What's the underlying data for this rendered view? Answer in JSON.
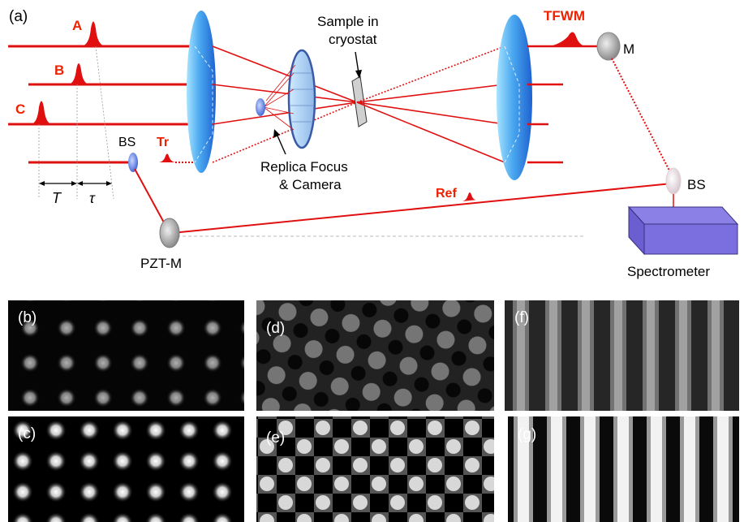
{
  "labels": {
    "panel_a": "(a)",
    "pulse_a": "A",
    "pulse_b": "B",
    "pulse_c": "C",
    "tr": "Tr",
    "bs_left": "BS",
    "t_big": "T",
    "tau": "τ",
    "pzt_m": "PZT-M",
    "sample_line1": "Sample in",
    "sample_line2": "cryostat",
    "replica_line1": "Replica Focus",
    "replica_line2": "& Camera",
    "tfwm": "TFWM",
    "mirror_m": "M",
    "ref": "Ref",
    "bs_right": "BS",
    "spectrometer": "Spectrometer"
  },
  "panels": [
    {
      "id": "b",
      "label": "(b)"
    },
    {
      "id": "c",
      "label": "(c)"
    },
    {
      "id": "d",
      "label": "(d)"
    },
    {
      "id": "e",
      "label": "(e)"
    },
    {
      "id": "f",
      "label": "(f)"
    },
    {
      "id": "g",
      "label": "(g)"
    }
  ],
  "colors": {
    "beam": "#e01010",
    "pulse_label": "#ee2200",
    "lens": "#2f8fe8",
    "spectrometer": "#7b6fe0"
  }
}
